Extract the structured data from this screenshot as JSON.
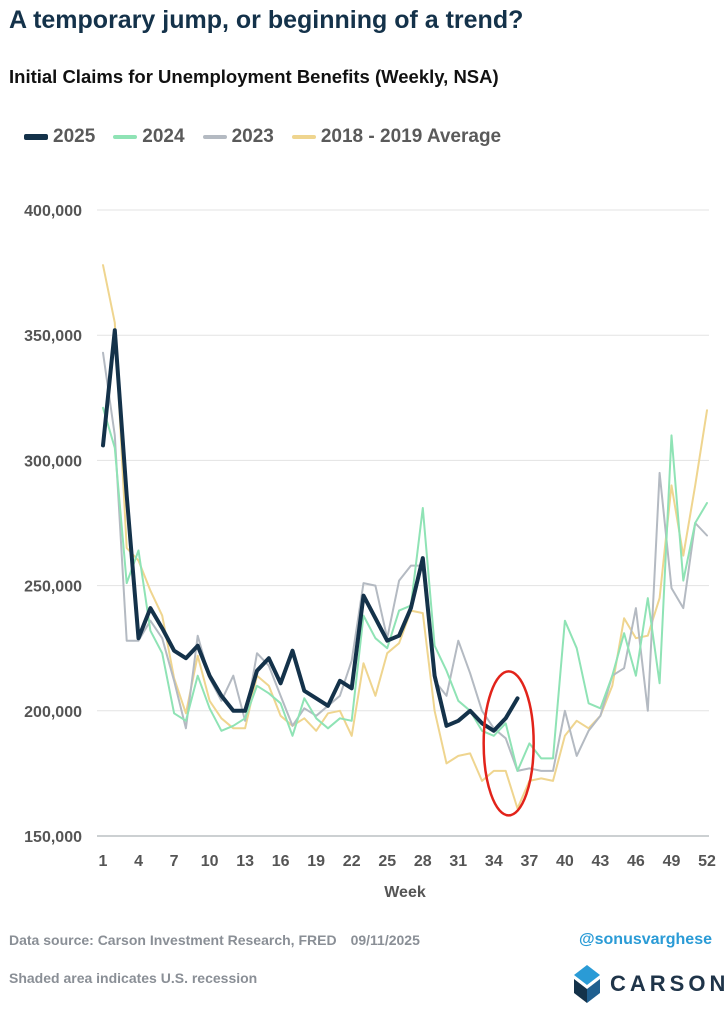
{
  "title": "A temporary jump, or beginning of a trend?",
  "subtitle": "Initial Claims for Unemployment Benefits (Weekly, NSA)",
  "footer": {
    "source": "Data source: Carson Investment Research, FRED",
    "date": "09/11/2025",
    "note": "Shaded area indicates U.S. recession",
    "handle": "@sonusvarghese",
    "logo_text": "CARSON"
  },
  "chart_data": {
    "type": "line",
    "xlabel": "Week",
    "ylabel": "",
    "ylim": [
      150000,
      400000
    ],
    "yticks": [
      150000,
      200000,
      250000,
      300000,
      350000,
      400000
    ],
    "ytick_labels": [
      "150,000",
      "200,000",
      "250,000",
      "300,000",
      "350,000",
      "400,000"
    ],
    "xticks": [
      1,
      4,
      7,
      10,
      13,
      16,
      19,
      22,
      25,
      28,
      31,
      34,
      37,
      40,
      43,
      46,
      49,
      52
    ],
    "xlim": [
      1,
      52
    ],
    "grid": "horizontal",
    "legend_position": "top-left",
    "annotation": "red ellipse around weeks 34-36",
    "series": [
      {
        "name": "2025",
        "color": "#14324a",
        "width": 4,
        "x": [
          1,
          2,
          3,
          4,
          5,
          6,
          7,
          8,
          9,
          10,
          11,
          12,
          13,
          14,
          15,
          16,
          17,
          18,
          19,
          20,
          21,
          22,
          23,
          24,
          25,
          26,
          27,
          28,
          29,
          30,
          31,
          32,
          33,
          34,
          35,
          36
        ],
        "values": [
          306000,
          352000,
          286000,
          229000,
          241000,
          233000,
          224000,
          221000,
          226000,
          214000,
          206000,
          200000,
          200000,
          216000,
          221000,
          211000,
          224000,
          208000,
          205000,
          202000,
          212000,
          209000,
          246000,
          237000,
          228000,
          230000,
          241000,
          261000,
          214000,
          194000,
          196000,
          200000,
          195000,
          192000,
          197000,
          205000
        ]
      },
      {
        "name": "2024",
        "color": "#8fe3b5",
        "width": 2,
        "x": [
          1,
          2,
          3,
          4,
          5,
          6,
          7,
          8,
          9,
          10,
          11,
          12,
          13,
          14,
          15,
          16,
          17,
          18,
          19,
          20,
          21,
          22,
          23,
          24,
          25,
          26,
          27,
          28,
          29,
          30,
          31,
          32,
          33,
          34,
          35,
          36,
          37,
          38,
          39,
          40,
          41,
          42,
          43,
          44,
          45,
          46,
          47,
          48,
          49,
          50,
          51,
          52
        ],
        "values": [
          321000,
          305000,
          251000,
          264000,
          232000,
          223000,
          199000,
          196000,
          214000,
          201000,
          192000,
          194000,
          197000,
          210000,
          207000,
          203000,
          190000,
          205000,
          197000,
          193000,
          197000,
          196000,
          238000,
          229000,
          225000,
          240000,
          242000,
          281000,
          226000,
          216000,
          204000,
          200000,
          192000,
          190000,
          195000,
          176000,
          187000,
          181000,
          181000,
          236000,
          225000,
          203000,
          201000,
          214000,
          231000,
          214000,
          245000,
          211000,
          310000,
          252000,
          275000,
          283000
        ]
      },
      {
        "name": "2023",
        "color": "#b4bac2",
        "width": 2,
        "x": [
          1,
          2,
          3,
          4,
          5,
          6,
          7,
          8,
          9,
          10,
          11,
          12,
          13,
          14,
          15,
          16,
          17,
          18,
          19,
          20,
          21,
          22,
          23,
          24,
          25,
          26,
          27,
          28,
          29,
          30,
          31,
          32,
          33,
          34,
          35,
          36,
          37,
          38,
          39,
          40,
          41,
          42,
          43,
          44,
          45,
          46,
          47,
          48,
          49,
          50,
          51,
          52
        ],
        "values": [
          343000,
          310000,
          228000,
          228000,
          236000,
          229000,
          212000,
          193000,
          230000,
          213000,
          204000,
          214000,
          196000,
          223000,
          218000,
          206000,
          194000,
          201000,
          198000,
          202000,
          206000,
          220000,
          251000,
          250000,
          229000,
          252000,
          258000,
          258000,
          212000,
          206000,
          228000,
          215000,
          200000,
          193000,
          189000,
          176000,
          177000,
          176000,
          176000,
          200000,
          182000,
          192000,
          198000,
          214000,
          217000,
          241000,
          200000,
          295000,
          249000,
          241000,
          275000,
          270000
        ]
      },
      {
        "name": "2018 - 2019 Average",
        "color": "#efd58f",
        "width": 2,
        "x": [
          1,
          2,
          3,
          4,
          5,
          6,
          7,
          8,
          9,
          10,
          11,
          12,
          13,
          14,
          15,
          16,
          17,
          18,
          19,
          20,
          21,
          22,
          23,
          24,
          25,
          26,
          27,
          28,
          29,
          30,
          31,
          32,
          33,
          34,
          35,
          36,
          37,
          38,
          39,
          40,
          41,
          42,
          43,
          44,
          45,
          46,
          47,
          48,
          49,
          50,
          51,
          52
        ],
        "values": [
          378000,
          355000,
          265000,
          260000,
          248000,
          238000,
          213000,
          199000,
          222000,
          204000,
          197000,
          193000,
          193000,
          214000,
          210000,
          198000,
          194000,
          197000,
          192000,
          199000,
          200000,
          190000,
          219000,
          206000,
          223000,
          227000,
          240000,
          239000,
          200000,
          179000,
          182000,
          183000,
          172000,
          176000,
          176000,
          161000,
          172000,
          173000,
          172000,
          190000,
          196000,
          193000,
          198000,
          210000,
          237000,
          229000,
          230000,
          245000,
          290000,
          262000,
          290000,
          320000
        ]
      }
    ]
  }
}
